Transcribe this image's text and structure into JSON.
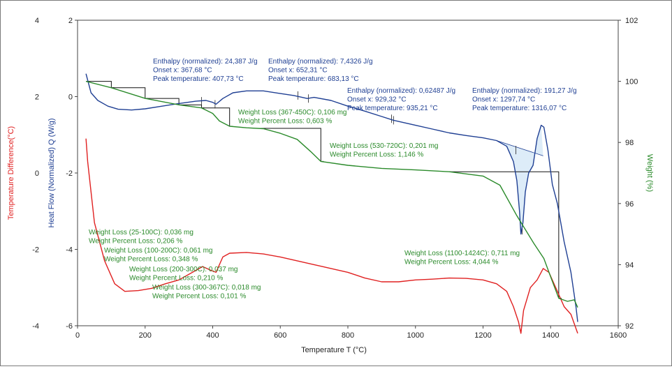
{
  "chart_data": {
    "type": "line",
    "x_axis": {
      "label": "Temperature",
      "symbol": "T",
      "unit": "(°C)",
      "range": [
        0,
        1600
      ],
      "ticks": [
        "0",
        "200",
        "400",
        "600",
        "800",
        "1000",
        "1200",
        "1400",
        "1600"
      ]
    },
    "y_axes": {
      "temperature_difference": {
        "label": "Temperature Difference(°C)",
        "color": "#e02020",
        "range": [
          -4,
          4
        ],
        "ticks": [
          "4",
          "2",
          "0",
          "-2",
          "-4"
        ]
      },
      "heat_flow": {
        "label": "Heat Flow (Normalized)",
        "symbol": "Q",
        "unit": "(W/g)",
        "color": "#1f3f93",
        "range": [
          -6,
          2
        ],
        "ticks": [
          "2",
          "0",
          "-2",
          "-4",
          "-6"
        ]
      },
      "weight": {
        "label": "Weight (%)",
        "color": "#2a8a2a",
        "range": [
          92,
          102
        ],
        "ticks": [
          "102",
          "100",
          "98",
          "96",
          "94",
          "92"
        ]
      }
    },
    "series": [
      {
        "name": "Temperature Difference",
        "axis": "temperature_difference",
        "color": "#e02020",
        "points": [
          [
            25,
            0.9
          ],
          [
            30,
            0.3
          ],
          [
            50,
            -1.3
          ],
          [
            80,
            -2.3
          ],
          [
            110,
            -2.9
          ],
          [
            140,
            -3.1
          ],
          [
            180,
            -3.08
          ],
          [
            220,
            -3.02
          ],
          [
            260,
            -2.9
          ],
          [
            300,
            -2.8
          ],
          [
            340,
            -2.6
          ],
          [
            370,
            -2.45
          ],
          [
            395,
            -2.55
          ],
          [
            410,
            -2.6
          ],
          [
            430,
            -2.2
          ],
          [
            450,
            -2.1
          ],
          [
            500,
            -2.08
          ],
          [
            550,
            -2.12
          ],
          [
            600,
            -2.2
          ],
          [
            650,
            -2.3
          ],
          [
            700,
            -2.4
          ],
          [
            750,
            -2.5
          ],
          [
            800,
            -2.6
          ],
          [
            850,
            -2.75
          ],
          [
            900,
            -2.85
          ],
          [
            950,
            -2.85
          ],
          [
            1000,
            -2.8
          ],
          [
            1050,
            -2.78
          ],
          [
            1100,
            -2.75
          ],
          [
            1150,
            -2.76
          ],
          [
            1200,
            -2.8
          ],
          [
            1240,
            -2.9
          ],
          [
            1270,
            -3.1
          ],
          [
            1290,
            -3.5
          ],
          [
            1305,
            -3.9
          ],
          [
            1312,
            -4.2
          ],
          [
            1320,
            -3.6
          ],
          [
            1340,
            -3.0
          ],
          [
            1360,
            -2.8
          ],
          [
            1378,
            -2.5
          ],
          [
            1395,
            -2.6
          ],
          [
            1420,
            -3.1
          ],
          [
            1440,
            -3.5
          ],
          [
            1460,
            -3.7
          ],
          [
            1480,
            -4.2
          ]
        ]
      },
      {
        "name": "Heat Flow (Normalized)",
        "axis": "heat_flow",
        "color": "#1f3f93",
        "points": [
          [
            25,
            0.6
          ],
          [
            40,
            0.1
          ],
          [
            60,
            -0.1
          ],
          [
            90,
            -0.25
          ],
          [
            120,
            -0.33
          ],
          [
            160,
            -0.35
          ],
          [
            200,
            -0.32
          ],
          [
            250,
            -0.25
          ],
          [
            300,
            -0.18
          ],
          [
            350,
            -0.12
          ],
          [
            380,
            -0.1
          ],
          [
            400,
            -0.15
          ],
          [
            410,
            -0.2
          ],
          [
            430,
            -0.05
          ],
          [
            460,
            0.1
          ],
          [
            500,
            0.15
          ],
          [
            550,
            0.15
          ],
          [
            600,
            0.08
          ],
          [
            640,
            0.03
          ],
          [
            680,
            -0.05
          ],
          [
            700,
            -0.02
          ],
          [
            750,
            -0.1
          ],
          [
            800,
            -0.25
          ],
          [
            850,
            -0.38
          ],
          [
            900,
            -0.52
          ],
          [
            935,
            -0.62
          ],
          [
            1000,
            -0.75
          ],
          [
            1050,
            -0.85
          ],
          [
            1100,
            -0.95
          ],
          [
            1150,
            -1.02
          ],
          [
            1200,
            -1.08
          ],
          [
            1240,
            -1.15
          ],
          [
            1270,
            -1.3
          ],
          [
            1290,
            -1.7
          ],
          [
            1300,
            -2.2
          ],
          [
            1308,
            -3.0
          ],
          [
            1312,
            -3.6
          ],
          [
            1318,
            -3.3
          ],
          [
            1325,
            -2.5
          ],
          [
            1335,
            -2.0
          ],
          [
            1348,
            -1.8
          ],
          [
            1360,
            -1.1
          ],
          [
            1372,
            -0.75
          ],
          [
            1380,
            -0.8
          ],
          [
            1392,
            -1.4
          ],
          [
            1405,
            -2.3
          ],
          [
            1420,
            -2.8
          ],
          [
            1440,
            -3.8
          ],
          [
            1460,
            -4.6
          ],
          [
            1475,
            -5.5
          ],
          [
            1480,
            -5.9
          ]
        ]
      },
      {
        "name": "Weight",
        "axis": "weight",
        "color": "#2a8a2a",
        "points": [
          [
            25,
            100
          ],
          [
            100,
            99.79
          ],
          [
            200,
            99.44
          ],
          [
            300,
            99.23
          ],
          [
            367,
            99.13
          ],
          [
            400,
            98.95
          ],
          [
            420,
            98.7
          ],
          [
            450,
            98.53
          ],
          [
            500,
            98.48
          ],
          [
            550,
            98.45
          ],
          [
            600,
            98.3
          ],
          [
            650,
            98.1
          ],
          [
            690,
            97.7
          ],
          [
            720,
            97.38
          ],
          [
            800,
            97.25
          ],
          [
            900,
            97.15
          ],
          [
            1000,
            97.1
          ],
          [
            1100,
            97.04
          ],
          [
            1200,
            96.9
          ],
          [
            1250,
            96.6
          ],
          [
            1300,
            95.6
          ],
          [
            1350,
            94.7
          ],
          [
            1380,
            94.2
          ],
          [
            1400,
            93.6
          ],
          [
            1424,
            92.9
          ],
          [
            1450,
            92.8
          ],
          [
            1470,
            92.85
          ],
          [
            1480,
            92.6
          ]
        ]
      }
    ],
    "annotations_blue": [
      {
        "lines": [
          "Enthalpy (normalized): 24,387 J/g",
          "Onset x: 367,68 °C",
          "Peak temperature: 407,73 °C"
        ]
      },
      {
        "lines": [
          "Enthalpy (normalized): 7,4326 J/g",
          "Onset x: 652,31 °C",
          "Peak temperature: 683,13 °C"
        ]
      },
      {
        "lines": [
          "Enthalpy (normalized): 0,62487 J/g",
          "Onset x: 929,32 °C",
          "Peak temperature: 935,21 °C"
        ]
      },
      {
        "lines": [
          "Enthalpy (normalized): 191,27 J/g",
          "Onset x: 1297,74 °C",
          "Peak temperature: 1316,07 °C"
        ]
      }
    ],
    "annotations_green": [
      {
        "lines": [
          "Weight Loss (367-450C): 0,106 mg",
          "Weight Percent Loss: 0,603 %"
        ]
      },
      {
        "lines": [
          "Weight Loss (530-720C): 0,201 mg",
          "Weight Percent Loss: 1,146 %"
        ]
      },
      {
        "lines": [
          "Weight Loss (25-100C): 0,036 mg",
          "Weight Percent Loss: 0,206 %"
        ]
      },
      {
        "lines": [
          "Weight Loss (100-200C): 0,061 mg",
          "Weight Percent Loss: 0,348 %"
        ]
      },
      {
        "lines": [
          "Weight Loss (200-300C): 0,037 mg",
          "Weight Percent Loss: 0,210 %"
        ]
      },
      {
        "lines": [
          "Weight Loss (300-367C): 0,018 mg",
          "Weight Percent Loss: 0,101 %"
        ]
      },
      {
        "lines": [
          "Weight Loss (1100-1424C): 0,711 mg",
          "Weight Percent Loss: 4,044 %"
        ]
      }
    ]
  }
}
